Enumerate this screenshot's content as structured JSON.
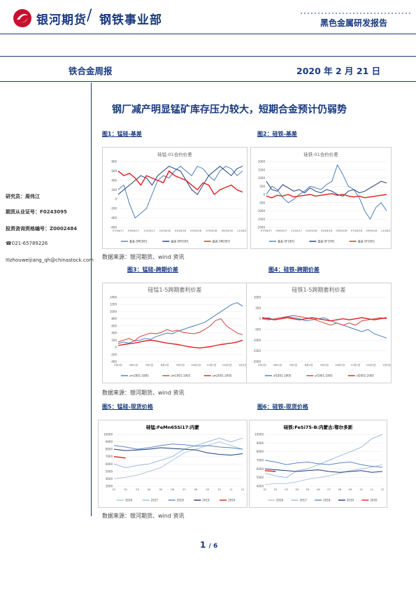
{
  "header": {
    "brand": "银河期货",
    "dept": "钢铁事业部",
    "report_type": "黑色金属研发报告"
  },
  "subheader": {
    "section": "铁合金周报",
    "date": "2020 年 2 月 21 日"
  },
  "title": "钢厂减产明显锰矿库存压力较大，短期合金预计仍弱势",
  "sidebar": {
    "researcher": "研究员：周伟江",
    "license": "期货从业证号：F0243095",
    "advisor": "投资咨询资格编号：Z0002484",
    "phone": "021-65789226",
    "email": "zhouweijiang_qh@chinastock.com"
  },
  "figures": [
    {
      "caption": "图1：锰硅-基差"
    },
    {
      "caption": "图2：硅铁-基差"
    },
    {
      "caption": "图3：锰硅-跨期价差"
    },
    {
      "caption": "图4：硅铁-跨期价差"
    },
    {
      "caption": "图5：锰硅-现货价格"
    },
    {
      "caption": "图6：硅铁-现货价格"
    }
  ],
  "sources": [
    "数据来源：银河期货、wind 资讯",
    "数据来源：银河期货、wind 资讯",
    "数据来源：银河期货、wind 资讯"
  ],
  "page": {
    "current": "1",
    "total": "/ 6"
  },
  "chart_data": [
    {
      "type": "line",
      "title": "硅锰-01合约价差",
      "ylim": [
        -600,
        800
      ],
      "ticks": [
        "800",
        "600",
        "400",
        "200",
        "0",
        "-200",
        "-400",
        "-600"
      ],
      "xticks": [
        "07/04/17",
        "09/04/17",
        "11/04/17",
        "01/04/18",
        "03/04/18",
        "05/04/18",
        "07/04/18",
        "09/04/18",
        "11/04/18"
      ],
      "series": [
        {
          "name": "基差-SM1801",
          "color": "#4a7ebb",
          "values": [
            200,
            300,
            -100,
            -400,
            -300,
            -200,
            100,
            400,
            500,
            450,
            600,
            700,
            600,
            500,
            700,
            650,
            500,
            400,
            600,
            700,
            650,
            500,
            600
          ]
        },
        {
          "name": "基差-SM1901",
          "color": "#1f3d7a",
          "values": [
            100,
            200,
            300,
            400,
            500,
            450,
            300,
            500,
            600,
            700,
            650,
            600,
            400,
            200,
            100,
            300,
            500,
            600,
            700,
            600,
            500,
            650,
            700
          ]
        },
        {
          "name": "基差-SM2001",
          "color": "#e02020",
          "values": [
            600,
            500,
            550,
            450,
            300,
            500,
            450,
            400,
            350,
            600,
            500,
            450,
            400,
            300,
            200,
            350,
            300,
            100,
            200,
            250,
            300,
            200,
            150
          ]
        }
      ]
    },
    {
      "type": "line",
      "title": "硅铁-01合约价差",
      "ylim": [
        -2000,
        2000
      ],
      "ticks": [
        "2000",
        "1500",
        "1000",
        "500",
        "0",
        "-500",
        "-1000",
        "-1500",
        "-2000"
      ],
      "xticks": [
        "07/04/17",
        "09/04/17",
        "11/04/17",
        "01/04/18",
        "03/04/18",
        "05/04/18",
        "07/04/18",
        "09/04/18",
        "11/04/18"
      ],
      "series": [
        {
          "name": "基差-SF1801",
          "color": "#4a7ebb",
          "values": [
            0,
            500,
            300,
            -200,
            -500,
            -300,
            0,
            200,
            500,
            400,
            300,
            600,
            800,
            1800,
            1200,
            500,
            300,
            -200,
            -1000,
            -1500,
            -800,
            -500,
            -1000
          ]
        },
        {
          "name": "基差-SF1901",
          "color": "#1f3d7a",
          "values": [
            800,
            300,
            200,
            600,
            400,
            200,
            300,
            100,
            400,
            200,
            100,
            300,
            200,
            0,
            -100,
            200,
            300,
            100,
            200,
            400,
            600,
            800,
            700
          ]
        },
        {
          "name": "基差-SF2001",
          "color": "#e02020",
          "values": [
            -100,
            -200,
            -50,
            -100,
            0,
            -150,
            -100,
            -50,
            0,
            -100,
            -50,
            0,
            50,
            -50,
            0,
            -100,
            -150,
            -100,
            -200,
            -150,
            -100,
            -50,
            0
          ]
        }
      ]
    },
    {
      "type": "line",
      "title": "硅锰1-5跨期套利价差",
      "ylim": [
        -400,
        1400
      ],
      "ticks": [
        "1400",
        "1200",
        "1000",
        "800",
        "600",
        "400",
        "200",
        "0",
        "-200",
        "-400"
      ],
      "xticks": [
        "5月1日",
        "6月1日",
        "7月1日",
        "8月1日",
        "9月1日",
        "10月1日",
        "11月1日",
        "12月1日",
        "1月1日"
      ],
      "series": [
        {
          "name": "sm1801-1805",
          "color": "#4a7ebb",
          "values": [
            100,
            150,
            120,
            180,
            200,
            250,
            220,
            300,
            350,
            400,
            380,
            450,
            500,
            550,
            600,
            650,
            700,
            800,
            900,
            1000,
            1100,
            1200,
            1250,
            1150
          ]
        },
        {
          "name": "sm1901-1905",
          "color": "#d04040",
          "values": [
            150,
            200,
            250,
            180,
            300,
            350,
            400,
            380,
            420,
            500,
            450,
            480,
            420,
            400,
            380,
            420,
            500,
            600,
            750,
            800,
            600,
            500,
            400,
            350
          ]
        },
        {
          "name": "sm2001-2005",
          "color": "#e02020",
          "values": [
            50,
            80,
            100,
            120,
            150,
            180,
            200,
            180,
            150,
            120,
            100,
            80,
            50,
            20,
            0,
            -20,
            0,
            20,
            50,
            80,
            100,
            120,
            150,
            200
          ]
        }
      ]
    },
    {
      "type": "line",
      "title": "硅铁1-5跨期套利价差",
      "ylim": [
        -2000,
        1000
      ],
      "ticks": [
        "1000",
        "500",
        "0",
        "-500",
        "-1000",
        "-1500",
        "-2000"
      ],
      "xticks": [
        "5月1日",
        "6月1日",
        "7月1日",
        "8月1日",
        "9月1日",
        "10月1日",
        "11月1日",
        "12月1日",
        "1月1日"
      ],
      "series": [
        {
          "name": "sf1801-1805",
          "color": "#4a7ebb",
          "values": [
            0,
            50,
            -50,
            0,
            100,
            50,
            0,
            -100,
            -50,
            0,
            50,
            -100,
            -200,
            -300,
            -400,
            -500,
            -600,
            -500,
            -700,
            -800,
            -900
          ]
        },
        {
          "name": "sf1901-1905",
          "color": "#d04040",
          "values": [
            0,
            -50,
            0,
            50,
            100,
            150,
            100,
            50,
            0,
            -100,
            -200,
            -300,
            -200,
            -300,
            -200,
            -300,
            -100,
            -50,
            0,
            50,
            0
          ]
        },
        {
          "name": "sf2001-2005",
          "color": "#e02020",
          "values": [
            50,
            0,
            -50,
            0,
            50,
            0,
            -50,
            0,
            50,
            0,
            -50,
            -100,
            -50,
            0,
            -50,
            0,
            50,
            0,
            -50,
            0,
            50
          ]
        }
      ]
    },
    {
      "type": "line",
      "title": "硅锰:FeMn65Si17:内蒙",
      "ylim": [
        3000,
        10000
      ],
      "ticks": [
        "10000",
        "9000",
        "8000",
        "7000",
        "6000",
        "5000",
        "4000",
        "3000"
      ],
      "xticks": [
        "01",
        "02",
        "03",
        "04",
        "05",
        "06",
        "07",
        "08",
        "09",
        "10",
        "11",
        "12"
      ],
      "series": [
        {
          "name": "2016",
          "color": "#b0c4de",
          "values": [
            4000,
            4200,
            4500,
            5000,
            5500,
            6500,
            7500,
            8000,
            8500,
            9000,
            8500,
            8000
          ]
        },
        {
          "name": "2017",
          "color": "#9bbbe0",
          "values": [
            6000,
            5500,
            5800,
            6000,
            6500,
            7000,
            8000,
            8500,
            9000,
            9500,
            9000,
            9500
          ]
        },
        {
          "name": "2018",
          "color": "#5b87c4",
          "values": [
            8500,
            8300,
            8000,
            8200,
            8500,
            8700,
            8600,
            8400,
            8500,
            8300,
            8200,
            8000
          ]
        },
        {
          "name": "2019",
          "color": "#1f3d7a",
          "values": [
            8000,
            7800,
            7900,
            8000,
            8200,
            8100,
            8000,
            7900,
            7500,
            7300,
            7200,
            7400
          ]
        },
        {
          "name": "2020",
          "color": "#e02020",
          "values": [
            7000,
            6800
          ]
        }
      ]
    },
    {
      "type": "line",
      "title": "硅铁:FeSi75-B:内蒙古:鄂尔多斯",
      "ylim": [
        4000,
        10000
      ],
      "ticks": [
        "10000",
        "9000",
        "8000",
        "7000",
        "6000",
        "5000",
        "4000"
      ],
      "xticks": [
        "01",
        "02",
        "03",
        "04",
        "05",
        "06",
        "07",
        "08",
        "09",
        "10",
        "11",
        "12"
      ],
      "series": [
        {
          "name": "2016",
          "color": "#b0c4de",
          "values": [
            4200,
            4300,
            4300,
            4500,
            4800,
            5000,
            5200,
            5500,
            5800,
            6000,
            6200,
            6500
          ]
        },
        {
          "name": "2017",
          "color": "#9bbbe0",
          "values": [
            5500,
            5200,
            5000,
            5800,
            6000,
            6500,
            7000,
            7500,
            8000,
            8500,
            9500,
            10000
          ]
        },
        {
          "name": "2018",
          "color": "#5b87c4",
          "values": [
            7000,
            6800,
            6500,
            6700,
            6800,
            6600,
            6500,
            6700,
            6800,
            6500,
            6300,
            6200
          ]
        },
        {
          "name": "2019",
          "color": "#1f3d7a",
          "values": [
            6000,
            5900,
            5800,
            5700,
            5800,
            5900,
            5700,
            5600,
            5700,
            5800,
            5600,
            5700
          ]
        },
        {
          "name": "2020",
          "color": "#e02020",
          "values": [
            5800,
            5700
          ]
        }
      ]
    }
  ]
}
